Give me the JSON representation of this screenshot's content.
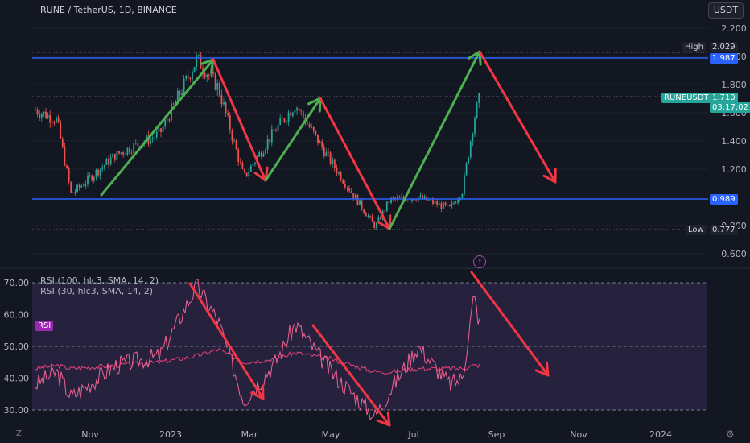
{
  "header": {
    "symbol_title": "RUNE / TetherUS, 1D, BINANCE",
    "unit_button": "USDT"
  },
  "price_axis": {
    "ticks": [
      "2.200",
      "2.000",
      "1.800",
      "1.600",
      "1.400",
      "1.200",
      "0.800",
      "0.600"
    ]
  },
  "tags": {
    "high_label": "High",
    "high_value": "2.029",
    "level_upper": "1.987",
    "symbol_label": "RUNEUSDT",
    "last_price": "1.710",
    "countdown": "03:17:02",
    "level_lower": "0.989",
    "low_label": "Low",
    "low_value": "0.777"
  },
  "rsi_panel": {
    "legend_1": "RSI (100, hlc3, SMA, 14, 2)",
    "legend_2": "RSI (30, hlc3, SMA, 14, 2)",
    "badge": "RSI",
    "ticks": [
      "70.00",
      "60.00",
      "50.00",
      "40.00",
      "30.00"
    ]
  },
  "time_axis": {
    "ticks": [
      "Nov",
      "2023",
      "Mar",
      "May",
      "Jul",
      "Sep",
      "Nov",
      "2024"
    ]
  },
  "corner_left": "Z",
  "colors": {
    "background": "#131722",
    "up": "#26a69a",
    "down": "#ef5350",
    "level_line": "#2962ff",
    "green_arrow": "#4caf50",
    "red_arrow": "#f23645",
    "rsi_fast": "#f06292",
    "rsi_slow": "#e91e63"
  },
  "chart_data": [
    {
      "type": "line",
      "title": "RUNE / TetherUS, 1D, BINANCE",
      "x": [
        "2022-10-15",
        "2022-10-30",
        "2022-11-09",
        "2022-12-10",
        "2023-01-10",
        "2023-02-05",
        "2023-02-20",
        "2023-03-10",
        "2023-04-01",
        "2023-04-15",
        "2023-05-10",
        "2023-06-10",
        "2023-06-20",
        "2023-07-10",
        "2023-08-01",
        "2023-08-10",
        "2023-08-18",
        "2023-08-22"
      ],
      "series": [
        {
          "values": [
            1.62,
            1.55,
            1.02,
            1.3,
            1.45,
            1.98,
            1.78,
            1.14,
            1.48,
            1.66,
            1.25,
            0.79,
            0.98,
            1.0,
            0.92,
            1.05,
            1.55,
            1.71
          ]
        }
      ],
      "levels": {
        "high": 2.029,
        "upper": 1.987,
        "last": 1.71,
        "lower": 0.989,
        "low": 0.777
      },
      "ylim": [
        0.55,
        2.25
      ]
    },
    {
      "type": "line",
      "x": [
        "2022-10-15",
        "2022-10-30",
        "2022-11-09",
        "2022-12-10",
        "2023-01-10",
        "2023-02-05",
        "2023-02-20",
        "2023-03-10",
        "2023-04-01",
        "2023-04-15",
        "2023-05-10",
        "2023-06-10",
        "2023-06-20",
        "2023-07-10",
        "2023-08-01",
        "2023-08-10",
        "2023-08-18",
        "2023-08-22"
      ],
      "series": [
        {
          "name": "RSI (100, hlc3, SMA, 14, 2)",
          "values": [
            43,
            44,
            43,
            44,
            45,
            47,
            49,
            45,
            46,
            48,
            46,
            42,
            42,
            43,
            43,
            43,
            44,
            44
          ]
        },
        {
          "name": "RSI (30, hlc3, SMA, 14, 2)",
          "values": [
            38,
            42,
            34,
            44,
            47,
            69,
            58,
            33,
            45,
            57,
            42,
            28,
            36,
            50,
            38,
            40,
            66,
            57
          ]
        }
      ],
      "ylim": [
        28,
        72
      ]
    }
  ]
}
